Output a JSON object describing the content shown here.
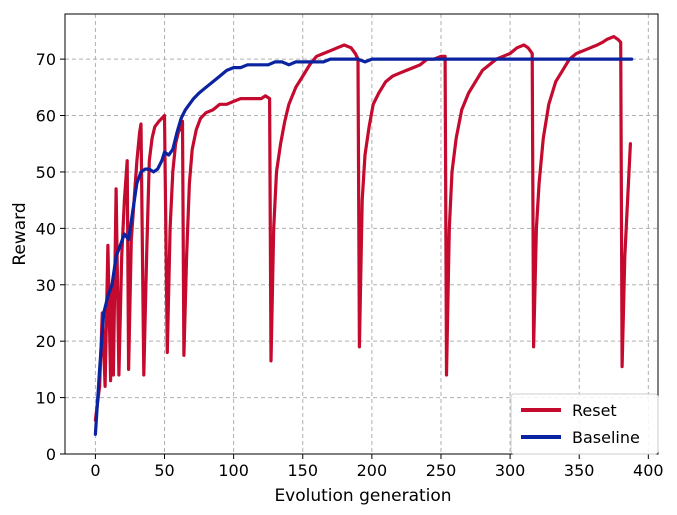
{
  "chart_data": {
    "type": "line",
    "xlabel": "Evolution generation",
    "ylabel": "Reward",
    "xlim": [
      -22,
      407
    ],
    "ylim": [
      0,
      78
    ],
    "x_ticks": [
      0,
      50,
      100,
      150,
      200,
      250,
      300,
      350,
      400
    ],
    "y_ticks": [
      0,
      10,
      20,
      30,
      40,
      50,
      60,
      70
    ],
    "grid": true,
    "legend_position": "bottom-right",
    "series": [
      {
        "name": "Reset",
        "color": "#c40a2e",
        "points": [
          [
            0,
            6
          ],
          [
            3,
            12
          ],
          [
            5,
            25
          ],
          [
            7,
            12
          ],
          [
            9,
            37
          ],
          [
            11,
            13
          ],
          [
            12,
            30
          ],
          [
            13,
            14
          ],
          [
            15,
            47
          ],
          [
            17,
            14
          ],
          [
            19,
            35
          ],
          [
            21,
            45
          ],
          [
            23,
            52
          ],
          [
            24,
            15
          ],
          [
            26,
            38
          ],
          [
            28,
            45
          ],
          [
            30,
            52
          ],
          [
            32,
            57
          ],
          [
            33,
            58.5
          ],
          [
            35,
            14
          ],
          [
            37,
            35
          ],
          [
            39,
            52
          ],
          [
            41,
            56
          ],
          [
            43,
            58
          ],
          [
            46,
            59
          ],
          [
            48,
            59.5
          ],
          [
            50,
            60
          ],
          [
            52,
            18
          ],
          [
            54,
            40
          ],
          [
            56,
            50
          ],
          [
            58,
            55
          ],
          [
            60,
            57
          ],
          [
            62,
            58
          ],
          [
            63,
            59
          ],
          [
            64,
            17.5
          ],
          [
            66,
            35
          ],
          [
            68,
            48
          ],
          [
            70,
            54
          ],
          [
            73,
            57.5
          ],
          [
            76,
            59.5
          ],
          [
            80,
            60.5
          ],
          [
            85,
            61
          ],
          [
            90,
            62
          ],
          [
            95,
            62
          ],
          [
            100,
            62.5
          ],
          [
            105,
            63
          ],
          [
            110,
            63
          ],
          [
            115,
            63
          ],
          [
            120,
            63
          ],
          [
            123,
            63.5
          ],
          [
            126,
            63
          ],
          [
            127,
            16.5
          ],
          [
            129,
            40
          ],
          [
            131,
            50
          ],
          [
            134,
            55
          ],
          [
            137,
            59
          ],
          [
            140,
            62
          ],
          [
            145,
            65
          ],
          [
            150,
            67
          ],
          [
            155,
            69
          ],
          [
            160,
            70.5
          ],
          [
            165,
            71
          ],
          [
            170,
            71.5
          ],
          [
            175,
            72
          ],
          [
            180,
            72.5
          ],
          [
            185,
            72
          ],
          [
            188,
            71
          ],
          [
            190,
            70
          ],
          [
            191,
            19
          ],
          [
            193,
            45
          ],
          [
            195,
            53
          ],
          [
            198,
            58
          ],
          [
            201,
            62
          ],
          [
            205,
            64
          ],
          [
            210,
            66
          ],
          [
            215,
            67
          ],
          [
            220,
            67.5
          ],
          [
            225,
            68
          ],
          [
            230,
            68.5
          ],
          [
            235,
            69
          ],
          [
            240,
            70
          ],
          [
            245,
            70
          ],
          [
            250,
            70.5
          ],
          [
            253,
            70.5
          ],
          [
            254,
            14
          ],
          [
            256,
            40
          ],
          [
            258,
            50
          ],
          [
            261,
            56
          ],
          [
            265,
            61
          ],
          [
            270,
            64
          ],
          [
            275,
            66
          ],
          [
            280,
            68
          ],
          [
            285,
            69
          ],
          [
            290,
            70
          ],
          [
            295,
            70.5
          ],
          [
            300,
            71
          ],
          [
            305,
            72
          ],
          [
            310,
            72.5
          ],
          [
            313,
            72
          ],
          [
            316,
            71
          ],
          [
            317,
            19
          ],
          [
            319,
            40
          ],
          [
            321,
            48
          ],
          [
            324,
            56
          ],
          [
            328,
            62
          ],
          [
            333,
            66
          ],
          [
            338,
            68
          ],
          [
            343,
            70
          ],
          [
            348,
            71
          ],
          [
            353,
            71.5
          ],
          [
            358,
            72
          ],
          [
            363,
            72.5
          ],
          [
            367,
            73
          ],
          [
            370,
            73.5
          ],
          [
            375,
            74
          ],
          [
            378,
            73.5
          ],
          [
            380,
            73
          ],
          [
            381,
            15.5
          ],
          [
            383,
            35
          ],
          [
            385,
            45
          ],
          [
            387,
            55
          ]
        ]
      },
      {
        "name": "Baseline",
        "color": "#0a23a0",
        "points": [
          [
            0,
            3.5
          ],
          [
            3,
            15
          ],
          [
            6,
            25
          ],
          [
            9,
            28
          ],
          [
            12,
            30
          ],
          [
            15,
            35
          ],
          [
            18,
            37
          ],
          [
            21,
            39
          ],
          [
            24,
            38
          ],
          [
            27,
            43
          ],
          [
            30,
            48
          ],
          [
            33,
            50
          ],
          [
            36,
            50.5
          ],
          [
            39,
            50.5
          ],
          [
            42,
            50
          ],
          [
            45,
            50.5
          ],
          [
            48,
            52
          ],
          [
            50,
            53.5
          ],
          [
            53,
            53
          ],
          [
            56,
            54
          ],
          [
            59,
            57
          ],
          [
            62,
            59.5
          ],
          [
            65,
            61
          ],
          [
            68,
            62
          ],
          [
            71,
            63
          ],
          [
            75,
            64
          ],
          [
            80,
            65
          ],
          [
            85,
            66
          ],
          [
            90,
            67
          ],
          [
            95,
            68
          ],
          [
            100,
            68.5
          ],
          [
            105,
            68.5
          ],
          [
            110,
            69
          ],
          [
            115,
            69
          ],
          [
            120,
            69
          ],
          [
            125,
            69
          ],
          [
            130,
            69.5
          ],
          [
            135,
            69.5
          ],
          [
            140,
            69
          ],
          [
            145,
            69.5
          ],
          [
            150,
            69.5
          ],
          [
            155,
            69.5
          ],
          [
            160,
            69.5
          ],
          [
            165,
            69.5
          ],
          [
            170,
            70
          ],
          [
            175,
            70
          ],
          [
            180,
            70
          ],
          [
            185,
            70
          ],
          [
            190,
            70
          ],
          [
            195,
            69.5
          ],
          [
            200,
            70
          ],
          [
            210,
            70
          ],
          [
            220,
            70
          ],
          [
            230,
            70
          ],
          [
            240,
            70
          ],
          [
            250,
            70
          ],
          [
            260,
            70
          ],
          [
            270,
            70
          ],
          [
            280,
            70
          ],
          [
            290,
            70
          ],
          [
            300,
            70
          ],
          [
            310,
            70
          ],
          [
            320,
            70
          ],
          [
            330,
            70
          ],
          [
            340,
            70
          ],
          [
            350,
            70
          ],
          [
            360,
            70
          ],
          [
            370,
            70
          ],
          [
            380,
            70
          ],
          [
            388,
            70
          ]
        ]
      }
    ]
  }
}
